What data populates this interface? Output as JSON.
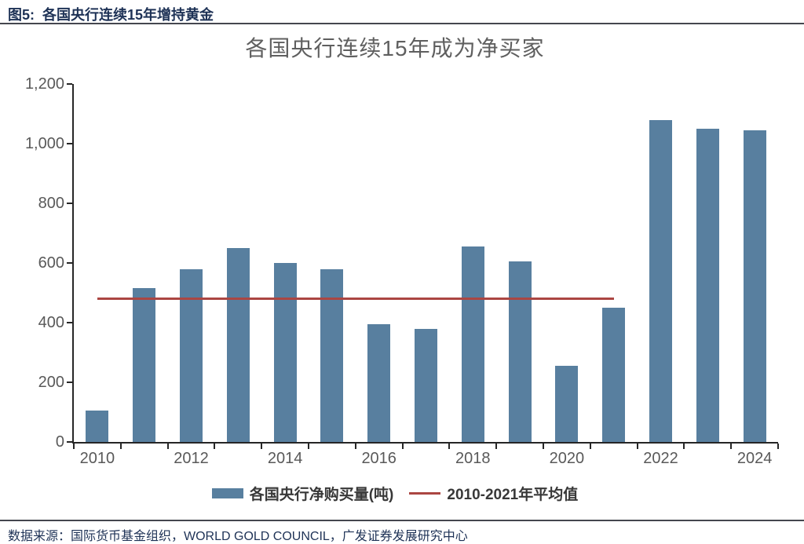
{
  "header": {
    "figure_label": "图5:",
    "figure_title": "各国央行连续15年增持黄金"
  },
  "chart_data": {
    "type": "bar",
    "title": "各国央行连续15年成为净买家",
    "categories": [
      2010,
      2011,
      2012,
      2013,
      2014,
      2015,
      2016,
      2017,
      2018,
      2019,
      2020,
      2021,
      2022,
      2023,
      2024
    ],
    "values": [
      105,
      515,
      580,
      650,
      600,
      580,
      395,
      380,
      655,
      605,
      255,
      450,
      1080,
      1050,
      1045
    ],
    "series_label": "各国央行净购买量(吨)",
    "average_line": {
      "label": "2010-2021年平均值",
      "value": 480,
      "span_years": [
        2010,
        2021
      ]
    },
    "ylim": [
      0,
      1200
    ],
    "yticks": [
      0,
      200,
      400,
      600,
      800,
      1000,
      1200
    ],
    "ytick_labels": [
      "0",
      "200",
      "400",
      "600",
      "800",
      "1,000",
      "1,200"
    ],
    "xtick_labels": [
      "2010",
      "2012",
      "2014",
      "2016",
      "2018",
      "2020",
      "2022",
      "2024"
    ],
    "xlabel": "",
    "ylabel": "",
    "grid": false,
    "legend_position": "bottom"
  },
  "footer": {
    "source_text": "数据来源：国际货币基金组织，WORLD GOLD COUNCIL，广发证券发展研究中心"
  },
  "colors": {
    "bar": "#587f9f",
    "average_line": "#ab4642",
    "axis": "#262626",
    "tick_label": "#595959",
    "title": "#5f5f5f",
    "header_text": "#1e3256",
    "footer_text": "#1e3256",
    "legend_text": "#383838",
    "rule": "#44464e"
  }
}
